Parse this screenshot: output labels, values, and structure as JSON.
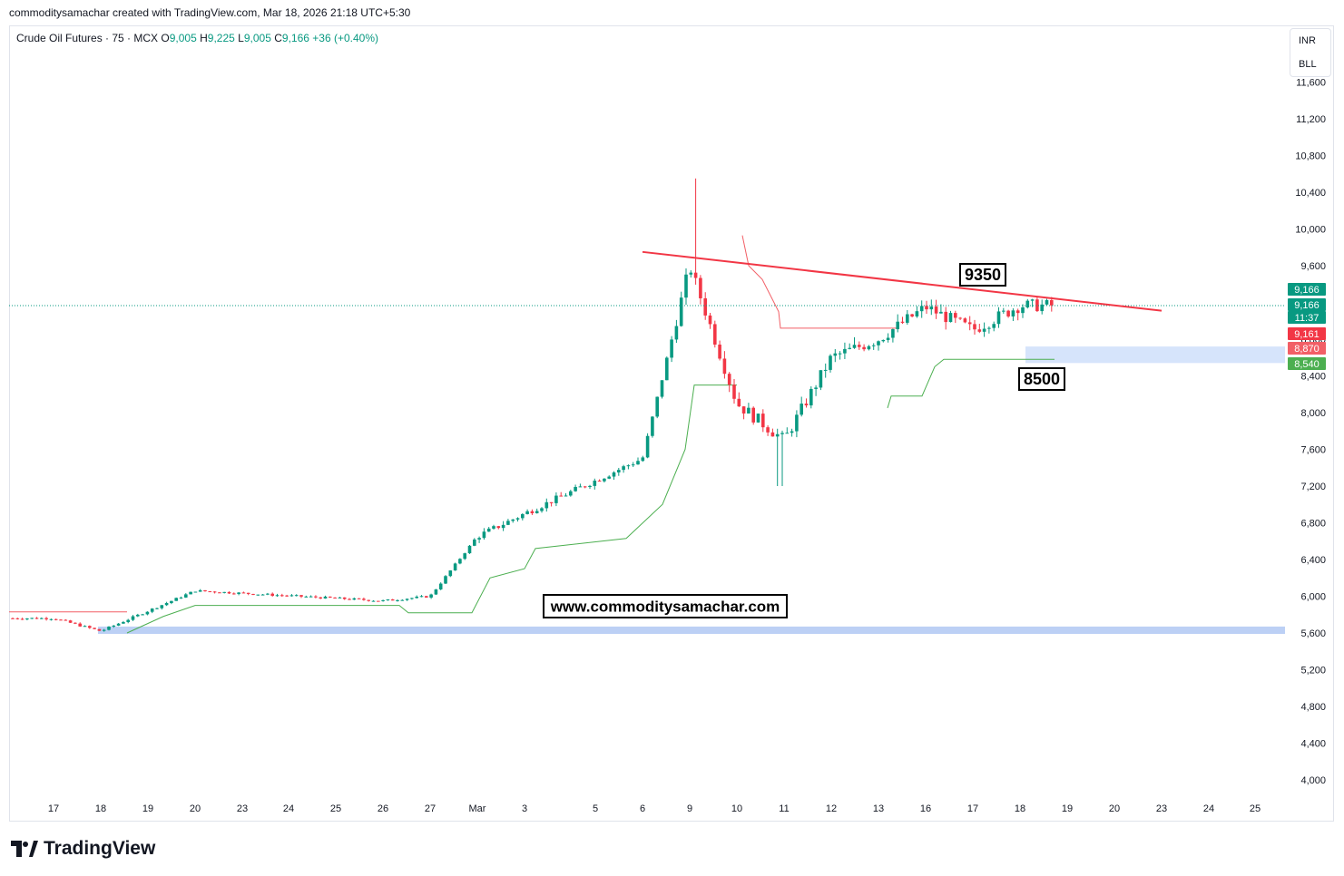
{
  "header": {
    "text": "commoditysamachar created with TradingView.com, Mar 18, 2026 21:18 UTC+5:30"
  },
  "legend": {
    "symbol": "Crude Oil Futures · 75 · MCX",
    "o_label": "O",
    "o_value": "9,005",
    "h_label": "H",
    "h_value": "9,225",
    "l_label": "L",
    "l_value": "9,005",
    "c_label": "C",
    "c_value": "9,166",
    "change": "+36 (+0.40%)"
  },
  "currency": {
    "line1": "INR",
    "line2": "BLL"
  },
  "footer": {
    "brand": "TradingView"
  },
  "colors": {
    "up": "#089981",
    "down": "#f23645",
    "trend_line": "#f23645",
    "support_zone": "#d6e4fb",
    "lower_zone": "#bcd0f5",
    "stop_green": "#4caf50",
    "stop_red": "#f25f66"
  },
  "chart_data": {
    "type": "candlestick",
    "ylim": [
      3800,
      11800
    ],
    "y_ticks": [
      "4,000",
      "4,400",
      "4,800",
      "5,200",
      "5,600",
      "6,000",
      "6,400",
      "6,800",
      "7,200",
      "7,600",
      "8,000",
      "8,400",
      "8,800",
      "9,200",
      "9,600",
      "10,000",
      "10,400",
      "10,800",
      "11,200",
      "11,600"
    ],
    "y_tick_values": [
      4000,
      4400,
      4800,
      5200,
      5600,
      6000,
      6400,
      6800,
      7200,
      7600,
      8000,
      8400,
      8800,
      9200,
      9600,
      10000,
      10400,
      10800,
      11200,
      11600
    ],
    "x_ticks": [
      "17",
      "18",
      "19",
      "20",
      "23",
      "24",
      "25",
      "26",
      "27",
      "Mar",
      "3",
      "5",
      "6",
      "9",
      "10",
      "11",
      "12",
      "13",
      "16",
      "17",
      "18",
      "19",
      "20",
      "23",
      "24",
      "25"
    ],
    "price_labels": [
      {
        "text": "9,166",
        "value": 9166,
        "color": "#089981"
      },
      {
        "text": "9,166",
        "value": 9166,
        "color": "#089981"
      },
      {
        "text": "11:37",
        "value": 9166,
        "color": "#089981"
      },
      {
        "text": "9,161",
        "value": 9161,
        "color": "#f23645"
      },
      {
        "text": "8,870",
        "value": 8870,
        "color": "#f25f66"
      },
      {
        "text": "8,540",
        "value": 8540,
        "color": "#4caf50"
      }
    ],
    "annotations": [
      {
        "text": "9350",
        "value": 9350
      },
      {
        "text": "8500",
        "value": 8500
      },
      {
        "text": "www.commoditysamachar.com"
      }
    ],
    "trend_line": {
      "from": 9750,
      "to": 9110
    },
    "zones": [
      {
        "from": 8540,
        "to": 8720
      },
      {
        "from": 5580,
        "to": 5660
      }
    ],
    "key_points": [
      {
        "day": "17",
        "close": 5760
      },
      {
        "day": "18",
        "close": 5620
      },
      {
        "day": "20",
        "close": 6060
      },
      {
        "day": "26",
        "close": 5950
      },
      {
        "day": "27",
        "close": 6000
      },
      {
        "day": "Mar",
        "close": 6650
      },
      {
        "day": "3",
        "close": 6900
      },
      {
        "day": "6",
        "close": 7500
      },
      {
        "day": "9",
        "high": 10550,
        "close": 9600
      },
      {
        "day": "10",
        "close": 8100
      },
      {
        "day": "11",
        "low": 7200,
        "close": 7700
      },
      {
        "day": "12",
        "close": 8600
      },
      {
        "day": "13",
        "close": 8800
      },
      {
        "day": "16",
        "close": 9150
      },
      {
        "day": "17",
        "close": 8900
      },
      {
        "day": "18",
        "low": 8520,
        "close": 9166
      }
    ]
  }
}
